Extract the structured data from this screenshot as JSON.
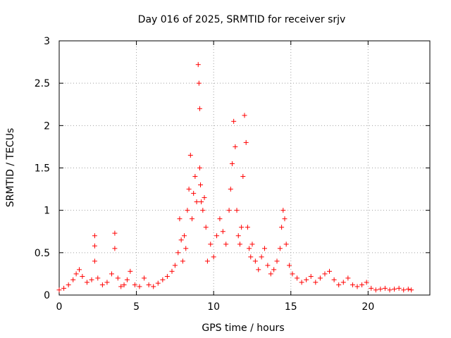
{
  "chart_data": {
    "type": "scatter",
    "title": "Day 016 of 2025, SRMTID for receiver srjv",
    "xlabel": "GPS time / hours",
    "ylabel": "SRMTID / TECUs",
    "xlim": [
      0,
      24
    ],
    "ylim": [
      0,
      3
    ],
    "xticks": [
      0,
      5,
      10,
      15,
      20
    ],
    "xtick_labels": [
      "0",
      "5",
      "10",
      "15",
      "20"
    ],
    "yticks": [
      0,
      0.5,
      1,
      1.5,
      2,
      2.5,
      3
    ],
    "ytick_labels": [
      "0",
      "0.5",
      "1",
      "1.5",
      "2",
      "2.5",
      "3"
    ],
    "grid": true,
    "marker": "+",
    "marker_color": "#ff0000",
    "series": [
      {
        "name": "SRMTID",
        "x": [
          0.0,
          0.3,
          0.6,
          0.9,
          1.1,
          1.3,
          1.5,
          1.8,
          2.1,
          2.3,
          2.3,
          2.3,
          2.5,
          2.8,
          3.1,
          3.4,
          3.6,
          3.6,
          3.8,
          4.0,
          4.2,
          4.4,
          4.6,
          4.9,
          5.2,
          5.5,
          5.8,
          6.1,
          6.4,
          6.7,
          7.0,
          7.3,
          7.5,
          7.7,
          7.8,
          7.9,
          8.0,
          8.1,
          8.2,
          8.3,
          8.4,
          8.5,
          8.6,
          8.7,
          8.8,
          8.9,
          9.0,
          9.05,
          9.1,
          9.1,
          9.15,
          9.2,
          9.3,
          9.4,
          9.5,
          9.6,
          9.8,
          10.0,
          10.2,
          10.4,
          10.6,
          10.8,
          11.0,
          11.1,
          11.2,
          11.3,
          11.4,
          11.5,
          11.6,
          11.7,
          11.8,
          11.9,
          12.0,
          12.1,
          12.2,
          12.3,
          12.4,
          12.5,
          12.7,
          12.9,
          13.1,
          13.3,
          13.5,
          13.7,
          13.9,
          14.1,
          14.3,
          14.4,
          14.5,
          14.6,
          14.7,
          14.9,
          15.1,
          15.4,
          15.7,
          16.0,
          16.3,
          16.6,
          16.9,
          17.2,
          17.5,
          17.8,
          18.1,
          18.4,
          18.7,
          19.0,
          19.3,
          19.6,
          19.9,
          20.2,
          20.5,
          20.8,
          21.1,
          21.4,
          21.7,
          22.0,
          22.3,
          22.6,
          22.8
        ],
        "y": [
          0.06,
          0.08,
          0.12,
          0.18,
          0.25,
          0.3,
          0.22,
          0.15,
          0.18,
          0.4,
          0.58,
          0.7,
          0.2,
          0.12,
          0.15,
          0.25,
          0.55,
          0.73,
          0.2,
          0.1,
          0.12,
          0.18,
          0.28,
          0.12,
          0.1,
          0.2,
          0.12,
          0.1,
          0.14,
          0.18,
          0.22,
          0.28,
          0.35,
          0.5,
          0.9,
          0.65,
          0.4,
          0.7,
          0.55,
          1.0,
          1.25,
          1.65,
          0.9,
          1.2,
          1.4,
          1.1,
          2.72,
          2.5,
          2.2,
          1.5,
          1.3,
          1.1,
          1.0,
          1.15,
          0.8,
          0.4,
          0.6,
          0.45,
          0.7,
          0.9,
          0.75,
          0.6,
          1.0,
          1.25,
          1.55,
          2.05,
          1.75,
          1.0,
          0.7,
          0.6,
          0.8,
          1.4,
          2.12,
          1.8,
          0.8,
          0.55,
          0.45,
          0.6,
          0.4,
          0.3,
          0.45,
          0.55,
          0.35,
          0.25,
          0.3,
          0.4,
          0.55,
          0.8,
          1.0,
          0.9,
          0.6,
          0.35,
          0.25,
          0.2,
          0.15,
          0.18,
          0.22,
          0.15,
          0.2,
          0.25,
          0.28,
          0.18,
          0.12,
          0.15,
          0.2,
          0.12,
          0.1,
          0.12,
          0.15,
          0.08,
          0.06,
          0.07,
          0.08,
          0.06,
          0.07,
          0.08,
          0.06,
          0.07,
          0.06
        ]
      }
    ]
  }
}
